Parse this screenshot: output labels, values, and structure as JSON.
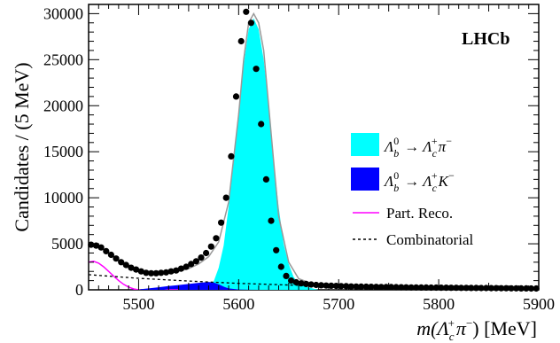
{
  "chart_data": {
    "type": "scatter",
    "title": "",
    "experiment_label": "LHCb",
    "xlabel": {
      "pre": "m(",
      "sym": "Λ",
      "sub": "c",
      "sup": "+",
      "mid": "π",
      "midsup": "−",
      "post": ") [MeV]"
    },
    "ylabel": "Candidates / (5 MeV)",
    "xlim": [
      5450,
      5900
    ],
    "ylim": [
      0,
      31000
    ],
    "x_ticks": [
      5500,
      5600,
      5700,
      5800,
      5900
    ],
    "y_ticks": [
      0,
      5000,
      10000,
      15000,
      20000,
      25000,
      30000
    ],
    "legend_position": "right",
    "colors": {
      "signal": "#00ffff",
      "misid": "#0000ff",
      "partreco": "#ff00ff",
      "combinatorial": "#000000",
      "total_fit": "#999999",
      "data": "#000000"
    },
    "legend": [
      {
        "kind": "box",
        "color": "#00ffff",
        "parts": {
          "a": "Λ",
          "asub": "b",
          "asup": "0",
          "arrow": "→",
          "b": "Λ",
          "bsub": "c",
          "bsup": "+",
          "c": "π",
          "csup": "−"
        }
      },
      {
        "kind": "box",
        "color": "#0000ff",
        "parts": {
          "a": "Λ",
          "asub": "b",
          "asup": "0",
          "arrow": "→",
          "b": "Λ",
          "bsub": "c",
          "bsup": "+",
          "c": "K",
          "csup": "−"
        }
      },
      {
        "kind": "line",
        "color": "#ff00ff",
        "text": "Part. Reco."
      },
      {
        "kind": "dash",
        "color": "#000000",
        "text": "Combinatorial"
      }
    ],
    "series": [
      {
        "name": "Data",
        "kind": "points",
        "x": [
          5452.5,
          5457.5,
          5462.5,
          5467.5,
          5472.5,
          5477.5,
          5482.5,
          5487.5,
          5492.5,
          5497.5,
          5502.5,
          5507.5,
          5512.5,
          5517.5,
          5522.5,
          5527.5,
          5532.5,
          5537.5,
          5542.5,
          5547.5,
          5552.5,
          5557.5,
          5562.5,
          5567.5,
          5572.5,
          5577.5,
          5582.5,
          5587.5,
          5592.5,
          5597.5,
          5602.5,
          5607.5,
          5612.5,
          5617.5,
          5622.5,
          5627.5,
          5632.5,
          5637.5,
          5642.5,
          5647.5,
          5652.5,
          5657.5,
          5662.5,
          5667.5,
          5672.5,
          5677.5,
          5682.5,
          5687.5,
          5692.5,
          5697.5,
          5702.5,
          5707.5,
          5712.5,
          5717.5,
          5722.5,
          5727.5,
          5732.5,
          5737.5,
          5742.5,
          5747.5,
          5752.5,
          5757.5,
          5762.5,
          5767.5,
          5772.5,
          5777.5,
          5782.5,
          5787.5,
          5792.5,
          5797.5,
          5802.5,
          5807.5,
          5812.5,
          5817.5,
          5822.5,
          5827.5,
          5832.5,
          5837.5,
          5842.5,
          5847.5,
          5852.5,
          5857.5,
          5862.5,
          5867.5,
          5872.5,
          5877.5,
          5882.5,
          5887.5,
          5892.5,
          5897.5
        ],
        "y": [
          4900,
          4800,
          4600,
          4200,
          3800,
          3400,
          3000,
          2700,
          2400,
          2200,
          2000,
          1850,
          1800,
          1800,
          1850,
          1900,
          2000,
          2100,
          2300,
          2500,
          2800,
          3100,
          3500,
          4000,
          4700,
          5600,
          7300,
          10000,
          14500,
          21000,
          27000,
          30200,
          29000,
          24000,
          18000,
          12000,
          7500,
          4300,
          2500,
          1500,
          1000,
          820,
          700,
          640,
          580,
          530,
          490,
          460,
          440,
          420,
          400,
          390,
          370,
          360,
          350,
          340,
          330,
          320,
          310,
          300,
          300,
          290,
          280,
          270,
          260,
          260,
          250,
          250,
          240,
          240,
          230,
          230,
          220,
          220,
          210,
          210,
          200,
          200,
          190,
          190,
          180,
          180,
          170,
          170,
          160,
          160,
          150,
          150,
          140,
          140
        ]
      },
      {
        "name": "Total fit",
        "kind": "line",
        "x": [
          5450,
          5460,
          5470,
          5480,
          5490,
          5500,
          5510,
          5520,
          5530,
          5540,
          5550,
          5560,
          5570,
          5580,
          5590,
          5600,
          5605,
          5610,
          5615,
          5620,
          5625,
          5630,
          5635,
          5640,
          5650,
          5660,
          5670,
          5680,
          5700,
          5750,
          5800,
          5850,
          5900
        ],
        "y": [
          5000,
          4700,
          4000,
          3200,
          2500,
          2100,
          1850,
          1800,
          1850,
          2000,
          2300,
          2800,
          3600,
          5200,
          9500,
          19000,
          25000,
          29000,
          30000,
          29000,
          26000,
          20000,
          14000,
          8000,
          3000,
          1200,
          800,
          600,
          450,
          330,
          260,
          200,
          150
        ]
      },
      {
        "name": "Λb0 → Λc+ π−",
        "kind": "area",
        "x": [
          5560,
          5570,
          5575,
          5580,
          5585,
          5590,
          5595,
          5600,
          5605,
          5610,
          5615,
          5620,
          5625,
          5630,
          5635,
          5640,
          5645,
          5650,
          5655,
          5660,
          5670,
          5680
        ],
        "y": [
          200,
          300,
          900,
          2400,
          4800,
          9000,
          14000,
          19500,
          24500,
          28300,
          29500,
          28300,
          25000,
          20000,
          14000,
          9000,
          5000,
          2800,
          1400,
          700,
          250,
          0
        ]
      },
      {
        "name": "Λb0 → Λc+ K−",
        "kind": "area",
        "x": [
          5490,
          5500,
          5510,
          5520,
          5530,
          5540,
          5550,
          5560,
          5570,
          5575,
          5580,
          5585,
          5590,
          5600,
          5610,
          5620
        ],
        "y": [
          0,
          50,
          150,
          280,
          400,
          520,
          640,
          760,
          860,
          800,
          600,
          350,
          150,
          40,
          10,
          0
        ]
      },
      {
        "name": "Part. Reco.",
        "kind": "line",
        "x": [
          5450,
          5455,
          5460,
          5465,
          5470,
          5475,
          5480,
          5485,
          5490,
          5495,
          5500,
          5505,
          5510,
          5520,
          5530,
          5540
        ],
        "y": [
          3000,
          3100,
          2900,
          2500,
          2000,
          1500,
          1000,
          600,
          300,
          100,
          0,
          -150,
          -250,
          -150,
          0,
          0
        ]
      },
      {
        "name": "Combinatorial",
        "kind": "dash",
        "x": [
          5450,
          5500,
          5550,
          5600,
          5650,
          5700,
          5750,
          5800,
          5850,
          5900
        ],
        "y": [
          1650,
          1250,
          950,
          700,
          520,
          400,
          310,
          240,
          190,
          150
        ]
      }
    ]
  }
}
